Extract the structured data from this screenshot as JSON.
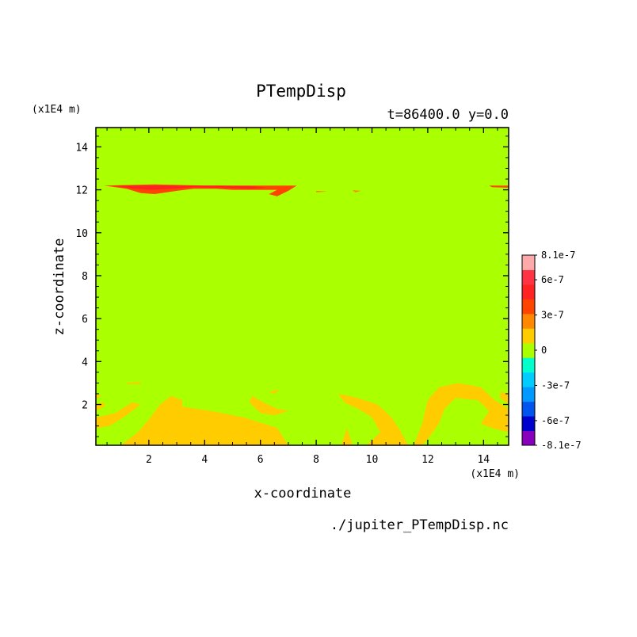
{
  "chart_data": {
    "type": "heatmap",
    "title": "PTempDisp",
    "subtitle": "t=86400.0 y=0.0",
    "xlabel": "x-coordinate",
    "ylabel": "z-coordinate",
    "x_scale_label": "(x1E4 m)",
    "y_scale_label": "(x1E4 m)",
    "source_label": "./jupiter_PTempDisp.nc",
    "xlim": [
      0.1,
      14.9
    ],
    "ylim": [
      0.1,
      14.9
    ],
    "x_ticks": [
      2,
      4,
      6,
      8,
      10,
      12,
      14
    ],
    "y_ticks": [
      2,
      4,
      6,
      8,
      10,
      12,
      14
    ],
    "x_tick_labels": [
      "2",
      "4",
      "6",
      "8",
      "10",
      "12",
      "14"
    ],
    "y_tick_labels": [
      "2",
      "4",
      "6",
      "8",
      "10",
      "12",
      "14"
    ],
    "colorbar": {
      "levels": [
        -8.1e-07,
        -6.75e-07,
        -5.4e-07,
        -4.05e-07,
        -2.7e-07,
        -1.35e-07,
        0,
        1.35e-07,
        2.7e-07,
        4.05e-07,
        5.4e-07,
        6.75e-07,
        8.1e-07
      ],
      "colors": [
        "#8800bb",
        "#0000cc",
        "#0055ee",
        "#0099ff",
        "#00ccff",
        "#00ffcc",
        "#aaff00",
        "#ffcc00",
        "#ff8800",
        "#ff4400",
        "#ff2222",
        "#ff3344",
        "#ffaaaa"
      ],
      "tick_labels": [
        "8.1e-7",
        "6e-7",
        "3e-7",
        "0",
        "-3e-7",
        "-6e-7",
        "-8.1e-7"
      ],
      "tick_values": [
        8.1e-07,
        6e-07,
        3e-07,
        0,
        -3e-07,
        -6e-07,
        -8.1e-07
      ]
    },
    "background_color": "#aaff00",
    "regions": [
      {
        "level": "positive-low",
        "color": "#ffcc00",
        "points": [
          [
            0.1,
            1.4
          ],
          [
            0.8,
            1.6
          ],
          [
            1.4,
            2.1
          ],
          [
            1.7,
            2.0
          ],
          [
            1.2,
            1.5
          ],
          [
            0.6,
            1.0
          ],
          [
            0.1,
            0.9
          ]
        ]
      },
      {
        "level": "positive-low",
        "color": "#ffcc00",
        "points": [
          [
            0.1,
            2.0
          ],
          [
            0.4,
            2.1
          ],
          [
            0.4,
            1.9
          ],
          [
            0.1,
            1.7
          ]
        ]
      },
      {
        "level": "positive-low",
        "color": "#ffcc00",
        "points": [
          [
            1.0,
            0.1
          ],
          [
            1.6,
            0.7
          ],
          [
            2.0,
            1.3
          ],
          [
            2.4,
            2.0
          ],
          [
            2.8,
            2.4
          ],
          [
            3.2,
            2.2
          ],
          [
            3.2,
            1.9
          ],
          [
            4.2,
            1.7
          ],
          [
            5.4,
            1.4
          ],
          [
            6.6,
            0.9
          ],
          [
            7.0,
            0.1
          ]
        ]
      },
      {
        "level": "positive-low",
        "color": "#ffcc00",
        "points": [
          [
            5.7,
            2.4
          ],
          [
            6.1,
            2.1
          ],
          [
            6.6,
            1.8
          ],
          [
            7.0,
            1.7
          ],
          [
            6.5,
            1.5
          ],
          [
            6.0,
            1.6
          ],
          [
            5.6,
            2.1
          ]
        ]
      },
      {
        "level": "positive-low",
        "color": "#ffcc00",
        "points": [
          [
            6.3,
            2.6
          ],
          [
            6.7,
            2.7
          ],
          [
            6.5,
            2.5
          ]
        ]
      },
      {
        "level": "positive-low",
        "color": "#ffcc00",
        "points": [
          [
            1.2,
            3.0
          ],
          [
            1.7,
            3.05
          ],
          [
            1.7,
            2.95
          ],
          [
            1.2,
            2.95
          ]
        ]
      },
      {
        "level": "positive-low",
        "color": "#ffcc00",
        "points": [
          [
            0.1,
            2.5
          ],
          [
            0.3,
            2.4
          ],
          [
            0.15,
            2.3
          ]
        ]
      },
      {
        "level": "positive-low",
        "color": "#ffcc00",
        "points": [
          [
            8.8,
            2.5
          ],
          [
            9.5,
            2.3
          ],
          [
            10.2,
            2.0
          ],
          [
            10.7,
            1.4
          ],
          [
            11.0,
            0.8
          ],
          [
            11.3,
            0.1
          ],
          [
            9.8,
            0.1
          ],
          [
            10.3,
            0.7
          ],
          [
            10.0,
            1.4
          ],
          [
            9.5,
            1.8
          ],
          [
            9.0,
            2.1
          ]
        ]
      },
      {
        "level": "positive-low",
        "color": "#ffcc00",
        "points": [
          [
            8.9,
            0.1
          ],
          [
            9.1,
            0.9
          ],
          [
            9.3,
            0.1
          ]
        ]
      },
      {
        "level": "positive-low",
        "color": "#ffcc00",
        "points": [
          [
            11.5,
            0.1
          ],
          [
            11.8,
            1.1
          ],
          [
            12.0,
            2.2
          ],
          [
            12.4,
            2.8
          ],
          [
            13.1,
            3.0
          ],
          [
            13.9,
            2.8
          ],
          [
            14.4,
            2.2
          ],
          [
            14.9,
            1.8
          ],
          [
            14.9,
            0.7
          ],
          [
            14.3,
            0.9
          ],
          [
            13.9,
            1.1
          ],
          [
            14.2,
            1.7
          ],
          [
            13.8,
            2.2
          ],
          [
            13.0,
            2.3
          ],
          [
            12.6,
            1.8
          ],
          [
            12.4,
            1.1
          ],
          [
            12.0,
            0.4
          ],
          [
            11.8,
            0.1
          ]
        ]
      },
      {
        "level": "positive-low",
        "color": "#ffcc00",
        "points": [
          [
            14.6,
            2.6
          ],
          [
            14.9,
            2.5
          ],
          [
            14.9,
            2.0
          ],
          [
            14.6,
            2.3
          ]
        ]
      },
      {
        "level": "positive-mid",
        "color": "#ff4400",
        "points": [
          [
            0.4,
            12.2
          ],
          [
            2.2,
            12.25
          ],
          [
            4.0,
            12.2
          ],
          [
            5.6,
            12.2
          ],
          [
            6.5,
            12.2
          ],
          [
            7.3,
            12.2
          ],
          [
            7.0,
            11.95
          ],
          [
            6.6,
            11.7
          ],
          [
            6.3,
            11.8
          ],
          [
            6.6,
            12.0
          ],
          [
            5.9,
            12.0
          ],
          [
            5.0,
            12.0
          ],
          [
            4.4,
            12.05
          ],
          [
            3.6,
            12.05
          ],
          [
            3.0,
            11.95
          ],
          [
            2.2,
            11.8
          ],
          [
            1.7,
            11.85
          ],
          [
            1.2,
            12.05
          ]
        ]
      },
      {
        "level": "positive-high",
        "color": "#ff2222",
        "points": [
          [
            0.7,
            12.2
          ],
          [
            2.0,
            12.2
          ],
          [
            3.2,
            12.2
          ],
          [
            4.5,
            12.2
          ],
          [
            5.6,
            12.18
          ],
          [
            6.2,
            12.1
          ],
          [
            5.6,
            12.05
          ],
          [
            4.6,
            12.1
          ],
          [
            3.6,
            12.12
          ],
          [
            2.8,
            12.05
          ],
          [
            2.1,
            12.0
          ],
          [
            1.5,
            12.05
          ]
        ]
      },
      {
        "level": "positive-mid",
        "color": "#ff8800",
        "points": [
          [
            8.0,
            11.95
          ],
          [
            8.4,
            11.92
          ],
          [
            8.0,
            11.88
          ]
        ]
      },
      {
        "level": "positive-mid",
        "color": "#ff8800",
        "points": [
          [
            9.3,
            11.98
          ],
          [
            9.6,
            11.95
          ],
          [
            9.4,
            11.88
          ]
        ]
      },
      {
        "level": "positive-mid",
        "color": "#ff4400",
        "points": [
          [
            14.2,
            12.2
          ],
          [
            14.9,
            12.2
          ],
          [
            14.9,
            12.1
          ],
          [
            14.3,
            12.12
          ]
        ]
      }
    ]
  }
}
